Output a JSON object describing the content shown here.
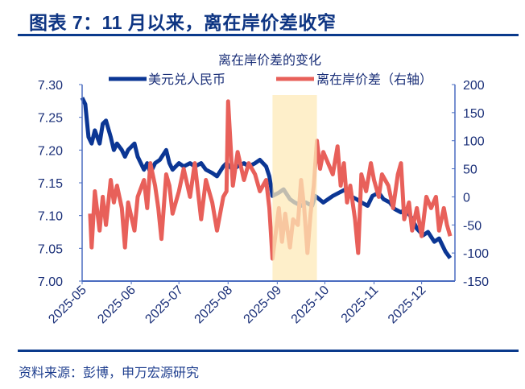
{
  "figure_title": "图表 7：11 月以来，离在岸价差收窄",
  "source": "资料来源：彭博，申万宏源研究",
  "colors": {
    "usdcny": "#0b3694",
    "spread": "#e8605a",
    "highlight": "#fde9b8",
    "axis": "#4a6cc0",
    "text": "#1a2f78"
  },
  "chart_data": {
    "type": "line",
    "title": "离在岸价差的变化",
    "legend_position": "top",
    "grid": false,
    "x_ticks": [
      "2025-05",
      "2025-06",
      "2025-07",
      "2025-08",
      "2025-09",
      "2025-10",
      "2025-11",
      "2025-12"
    ],
    "xlim": [
      "2025-05-01",
      "2025-12-22"
    ],
    "y_left": {
      "ticks": [
        "7.30",
        "7.25",
        "7.20",
        "7.15",
        "7.10",
        "7.05",
        "7.00"
      ],
      "ylim": [
        7.0,
        7.3
      ]
    },
    "y_right": {
      "ticks": [
        "200",
        "150",
        "100",
        "50",
        "0",
        "-50",
        "-100",
        "-150"
      ],
      "ylim": [
        -150,
        200
      ]
    },
    "highlight_range": [
      "2025-08-29",
      "2025-09-26"
    ],
    "series": [
      {
        "name": "美元兑人民币",
        "axis": "left",
        "color": "#0b3694",
        "points": [
          [
            "2025-05-01",
            7.28
          ],
          [
            "2025-05-03",
            7.27
          ],
          [
            "2025-05-05",
            7.22
          ],
          [
            "2025-05-07",
            7.21
          ],
          [
            "2025-05-09",
            7.23
          ],
          [
            "2025-05-12",
            7.21
          ],
          [
            "2025-05-14",
            7.24
          ],
          [
            "2025-05-16",
            7.245
          ],
          [
            "2025-05-19",
            7.22
          ],
          [
            "2025-05-21",
            7.2
          ],
          [
            "2025-05-23",
            7.21
          ],
          [
            "2025-05-26",
            7.2
          ],
          [
            "2025-05-28",
            7.19
          ],
          [
            "2025-05-30",
            7.2
          ],
          [
            "2025-06-03",
            7.21
          ],
          [
            "2025-06-05",
            7.19
          ],
          [
            "2025-06-09",
            7.17
          ],
          [
            "2025-06-11",
            7.18
          ],
          [
            "2025-06-13",
            7.165
          ],
          [
            "2025-06-16",
            7.18
          ],
          [
            "2025-06-19",
            7.185
          ],
          [
            "2025-06-23",
            7.2
          ],
          [
            "2025-06-25",
            7.18
          ],
          [
            "2025-06-27",
            7.17
          ],
          [
            "2025-07-01",
            7.18
          ],
          [
            "2025-07-04",
            7.175
          ],
          [
            "2025-07-08",
            7.18
          ],
          [
            "2025-07-11",
            7.175
          ],
          [
            "2025-07-15",
            7.18
          ],
          [
            "2025-07-18",
            7.17
          ],
          [
            "2025-07-22",
            7.165
          ],
          [
            "2025-07-25",
            7.16
          ],
          [
            "2025-07-29",
            7.175
          ],
          [
            "2025-07-31",
            7.18
          ],
          [
            "2025-08-04",
            7.17
          ],
          [
            "2025-08-07",
            7.175
          ],
          [
            "2025-08-11",
            7.18
          ],
          [
            "2025-08-14",
            7.175
          ],
          [
            "2025-08-18",
            7.18
          ],
          [
            "2025-08-21",
            7.185
          ],
          [
            "2025-08-25",
            7.175
          ],
          [
            "2025-08-27",
            7.16
          ],
          [
            "2025-08-29",
            7.13
          ],
          [
            "2025-09-02",
            7.135
          ],
          [
            "2025-09-05",
            7.14
          ],
          [
            "2025-09-09",
            7.125
          ],
          [
            "2025-09-12",
            7.12
          ],
          [
            "2025-09-16",
            7.115
          ],
          [
            "2025-09-19",
            7.12
          ],
          [
            "2025-09-23",
            7.115
          ],
          [
            "2025-09-25",
            7.13
          ],
          [
            "2025-09-30",
            7.12
          ],
          [
            "2025-10-06",
            7.13
          ],
          [
            "2025-10-10",
            7.135
          ],
          [
            "2025-10-14",
            7.14
          ],
          [
            "2025-10-17",
            7.13
          ],
          [
            "2025-10-21",
            7.125
          ],
          [
            "2025-10-24",
            7.12
          ],
          [
            "2025-10-28",
            7.115
          ],
          [
            "2025-10-31",
            7.13
          ],
          [
            "2025-11-04",
            7.135
          ],
          [
            "2025-11-07",
            7.125
          ],
          [
            "2025-11-11",
            7.12
          ],
          [
            "2025-11-14",
            7.11
          ],
          [
            "2025-11-18",
            7.105
          ],
          [
            "2025-11-21",
            7.11
          ],
          [
            "2025-11-25",
            7.095
          ],
          [
            "2025-11-28",
            7.08
          ],
          [
            "2025-12-02",
            7.07
          ],
          [
            "2025-12-05",
            7.075
          ],
          [
            "2025-12-09",
            7.06
          ],
          [
            "2025-12-12",
            7.065
          ],
          [
            "2025-12-16",
            7.045
          ],
          [
            "2025-12-19",
            7.035
          ]
        ]
      },
      {
        "name": "离在岸价差（右轴）",
        "axis": "right",
        "color": "#e8605a",
        "points": [
          [
            "2025-05-06",
            -30
          ],
          [
            "2025-05-07",
            -90
          ],
          [
            "2025-05-09",
            10
          ],
          [
            "2025-05-12",
            -60
          ],
          [
            "2025-05-14",
            0
          ],
          [
            "2025-05-16",
            -50
          ],
          [
            "2025-05-19",
            30
          ],
          [
            "2025-05-21",
            -10
          ],
          [
            "2025-05-23",
            20
          ],
          [
            "2025-05-26",
            -20
          ],
          [
            "2025-05-28",
            -90
          ],
          [
            "2025-05-30",
            -10
          ],
          [
            "2025-06-03",
            -60
          ],
          [
            "2025-06-05",
            0
          ],
          [
            "2025-06-09",
            30
          ],
          [
            "2025-06-11",
            -20
          ],
          [
            "2025-06-13",
            60
          ],
          [
            "2025-06-16",
            20
          ],
          [
            "2025-06-18",
            -20
          ],
          [
            "2025-06-20",
            -75
          ],
          [
            "2025-06-23",
            40
          ],
          [
            "2025-06-25",
            20
          ],
          [
            "2025-06-27",
            -30
          ],
          [
            "2025-07-01",
            10
          ],
          [
            "2025-07-04",
            50
          ],
          [
            "2025-07-08",
            0
          ],
          [
            "2025-07-11",
            60
          ],
          [
            "2025-07-15",
            -40
          ],
          [
            "2025-07-18",
            30
          ],
          [
            "2025-07-22",
            -10
          ],
          [
            "2025-07-25",
            -60
          ],
          [
            "2025-07-29",
            0
          ],
          [
            "2025-07-31",
            10
          ],
          [
            "2025-08-01",
            170
          ],
          [
            "2025-08-04",
            20
          ],
          [
            "2025-08-07",
            80
          ],
          [
            "2025-08-11",
            30
          ],
          [
            "2025-08-14",
            60
          ],
          [
            "2025-08-18",
            40
          ],
          [
            "2025-08-21",
            10
          ],
          [
            "2025-08-25",
            30
          ],
          [
            "2025-08-27",
            -20
          ],
          [
            "2025-08-29",
            -110
          ],
          [
            "2025-09-02",
            -20
          ],
          [
            "2025-09-04",
            -80
          ],
          [
            "2025-09-06",
            -30
          ],
          [
            "2025-09-09",
            -90
          ],
          [
            "2025-09-11",
            -40
          ],
          [
            "2025-09-14",
            -50
          ],
          [
            "2025-09-16",
            30
          ],
          [
            "2025-09-18",
            -20
          ],
          [
            "2025-09-20",
            -100
          ],
          [
            "2025-09-22",
            -30
          ],
          [
            "2025-09-24",
            20
          ],
          [
            "2025-09-26",
            100
          ],
          [
            "2025-09-28",
            50
          ],
          [
            "2025-09-30",
            80
          ],
          [
            "2025-10-06",
            40
          ],
          [
            "2025-10-09",
            90
          ],
          [
            "2025-10-11",
            20
          ],
          [
            "2025-10-13",
            60
          ],
          [
            "2025-10-15",
            -10
          ],
          [
            "2025-10-17",
            20
          ],
          [
            "2025-10-20",
            -40
          ],
          [
            "2025-10-22",
            -100
          ],
          [
            "2025-10-24",
            40
          ],
          [
            "2025-10-27",
            10
          ],
          [
            "2025-10-30",
            60
          ],
          [
            "2025-11-01",
            30
          ],
          [
            "2025-11-04",
            0
          ],
          [
            "2025-11-06",
            40
          ],
          [
            "2025-11-10",
            20
          ],
          [
            "2025-11-13",
            -20
          ],
          [
            "2025-11-16",
            40
          ],
          [
            "2025-11-18",
            60
          ],
          [
            "2025-11-20",
            -40
          ],
          [
            "2025-11-23",
            -10
          ],
          [
            "2025-11-25",
            -60
          ],
          [
            "2025-11-28",
            -20
          ],
          [
            "2025-12-01",
            -70
          ],
          [
            "2025-12-04",
            0
          ],
          [
            "2025-12-07",
            -20
          ],
          [
            "2025-12-10",
            0
          ],
          [
            "2025-12-12",
            -60
          ],
          [
            "2025-12-15",
            -20
          ],
          [
            "2025-12-17",
            -50
          ],
          [
            "2025-12-19",
            -70
          ]
        ]
      }
    ]
  }
}
